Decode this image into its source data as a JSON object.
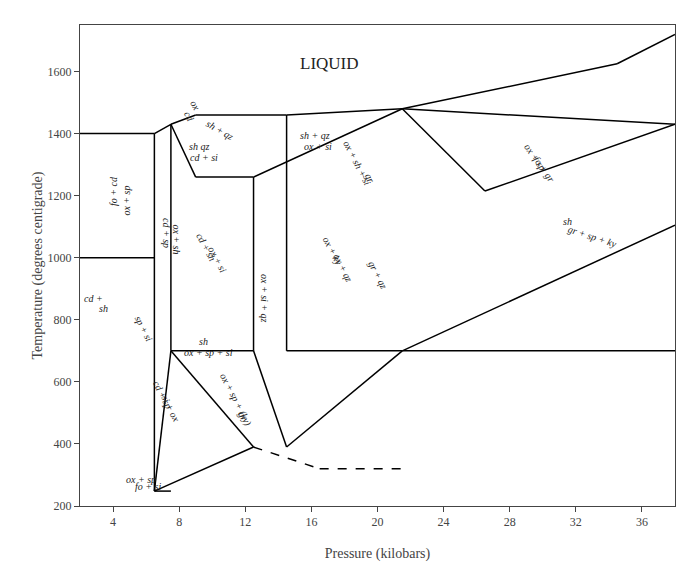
{
  "chart_data": {
    "type": "line",
    "title": "LIQUID",
    "xlabel": "Pressure (kilobars)",
    "ylabel": "Temperature (degrees centigrade)",
    "xlim": [
      2,
      38
    ],
    "ylim": [
      200,
      1750
    ],
    "xticks": [
      4,
      8,
      12,
      16,
      20,
      24,
      28,
      32,
      36
    ],
    "yticks": [
      200,
      400,
      600,
      800,
      1000,
      1200,
      1400,
      1600
    ],
    "grid": false,
    "color": "black",
    "series": [
      {
        "x": [
          2.0,
          6.5
        ],
        "values": [
          1400,
          1400
        ],
        "line_style": "solid"
      },
      {
        "x": [
          6.5,
          7.5
        ],
        "values": [
          1400,
          1430
        ],
        "line_style": "solid"
      },
      {
        "x": [
          7.5,
          9.0
        ],
        "values": [
          1430,
          1460
        ],
        "line_style": "solid"
      },
      {
        "x": [
          9.0,
          14.5
        ],
        "values": [
          1460,
          1460
        ],
        "line_style": "solid"
      },
      {
        "x": [
          14.5,
          21.5
        ],
        "values": [
          1460,
          1480
        ],
        "line_style": "solid"
      },
      {
        "x": [
          21.5,
          34.5
        ],
        "values": [
          1480,
          1625
        ],
        "line_style": "solid"
      },
      {
        "x": [
          34.5,
          38.0
        ],
        "values": [
          1625,
          1720
        ],
        "line_style": "solid"
      },
      {
        "x": [
          21.5,
          38.0
        ],
        "values": [
          1480,
          1430
        ],
        "line_style": "solid"
      },
      {
        "x": [
          6.5,
          6.5
        ],
        "values": [
          1400,
          248
        ],
        "line_style": "solid"
      },
      {
        "x": [
          7.5,
          7.5
        ],
        "values": [
          1430,
          700
        ],
        "line_style": "solid"
      },
      {
        "x": [
          6.5,
          7.5
        ],
        "values": [
          248,
          248
        ],
        "line_style": "solid"
      },
      {
        "x": [
          2.0,
          6.5
        ],
        "values": [
          1000,
          1000
        ],
        "line_style": "solid"
      },
      {
        "x": [
          6.5,
          7.5
        ],
        "values": [
          248,
          700
        ],
        "line_style": "solid"
      },
      {
        "x": [
          7.5,
          12.5
        ],
        "values": [
          700,
          700
        ],
        "line_style": "solid"
      },
      {
        "x": [
          7.5,
          9.0
        ],
        "values": [
          1430,
          1260
        ],
        "line_style": "solid"
      },
      {
        "x": [
          9.0,
          12.5
        ],
        "values": [
          1260,
          1260
        ],
        "line_style": "solid"
      },
      {
        "x": [
          12.5,
          12.5
        ],
        "values": [
          1260,
          700
        ],
        "line_style": "solid"
      },
      {
        "x": [
          12.5,
          21.5
        ],
        "values": [
          1260,
          1480
        ],
        "line_style": "solid"
      },
      {
        "x": [
          12.5,
          14.5
        ],
        "values": [
          700,
          390
        ],
        "line_style": "solid"
      },
      {
        "x": [
          14.5,
          14.5
        ],
        "values": [
          700,
          1460
        ],
        "line_style": "solid"
      },
      {
        "x": [
          7.5,
          12.5
        ],
        "values": [
          700,
          390
        ],
        "line_style": "solid"
      },
      {
        "x": [
          6.5,
          12.5
        ],
        "values": [
          248,
          390
        ],
        "line_style": "solid"
      },
      {
        "x": [
          14.5,
          21.5
        ],
        "values": [
          700,
          700
        ],
        "line_style": "solid"
      },
      {
        "x": [
          14.5,
          21.5
        ],
        "values": [
          390,
          700
        ],
        "line_style": "solid"
      },
      {
        "x": [
          21.5,
          38.0
        ],
        "values": [
          700,
          1105
        ],
        "line_style": "solid"
      },
      {
        "x": [
          21.5,
          38.0
        ],
        "values": [
          700,
          700
        ],
        "line_style": "solid"
      },
      {
        "x": [
          21.5,
          26.5
        ],
        "values": [
          1480,
          1215
        ],
        "line_style": "solid"
      },
      {
        "x": [
          26.5,
          38.0
        ],
        "values": [
          1215,
          1430
        ],
        "line_style": "solid"
      },
      {
        "x": [
          12.5,
          16.5
        ],
        "values": [
          390,
          320
        ],
        "line_style": "dashed"
      },
      {
        "x": [
          16.5,
          21.5
        ],
        "values": [
          320,
          320
        ],
        "line_style": "dashed"
      }
    ],
    "annotations": [
      {
        "text": "fo + cd",
        "x": 4.0,
        "y": 1215
      },
      {
        "text": "ox + sp",
        "x": 4.8,
        "y": 1185
      },
      {
        "text": "cd +",
        "x": 2.8,
        "y": 870
      },
      {
        "text": "sh",
        "x": 3.4,
        "y": 838
      },
      {
        "text": "sp + si",
        "x": 5.9,
        "y": 770
      },
      {
        "text": "cd + sp",
        "x": 7.2,
        "y": 1080
      },
      {
        "text": "ox + sh",
        "x": 7.85,
        "y": 1060
      },
      {
        "text": "cd + sh",
        "x": 9.6,
        "y": 1035
      },
      {
        "text": "ox + si",
        "x": 10.3,
        "y": 993
      },
      {
        "text": "ox + si + qz",
        "x": 13.2,
        "y": 870
      },
      {
        "text": "sh",
        "x": 9.5,
        "y": 730
      },
      {
        "text": "ox + sp + si",
        "x": 9.8,
        "y": 695
      },
      {
        "text": "cd + sp",
        "x": 7.0,
        "y": 560
      },
      {
        "text": "si + ox",
        "x": 7.5,
        "y": 515
      },
      {
        "text": "ox + sp + (ky)",
        "x": 11.4,
        "y": 540
      },
      {
        "text": "gr",
        "x": 11.9,
        "y": 490
      },
      {
        "text": "ox + sp",
        "x": 5.7,
        "y": 285
      },
      {
        "text": "fo + si",
        "x": 6.1,
        "y": 263
      },
      {
        "text": "ox",
        "x": 9.0,
        "y": 1492
      },
      {
        "text": "cd",
        "x": 8.6,
        "y": 1455
      },
      {
        "text": "sh + qz",
        "x": 10.5,
        "y": 1410
      },
      {
        "text": "sh qz",
        "x": 9.2,
        "y": 1360
      },
      {
        "text": "cd + si",
        "x": 9.5,
        "y": 1323
      },
      {
        "text": "sh + qz",
        "x": 16.2,
        "y": 1395
      },
      {
        "text": "ox + si",
        "x": 16.4,
        "y": 1358
      },
      {
        "text": "ox + sh + si",
        "x": 18.8,
        "y": 1305
      },
      {
        "text": "gr",
        "x": 19.5,
        "y": 1257
      },
      {
        "text": "ox + ky",
        "x": 17.3,
        "y": 1020
      },
      {
        "text": "ox + qz",
        "x": 17.9,
        "y": 968
      },
      {
        "text": "gr + qz",
        "x": 20.0,
        "y": 945
      },
      {
        "text": "ox + sp",
        "x": 29.5,
        "y": 1325
      },
      {
        "text": "fo + gr",
        "x": 30.1,
        "y": 1285
      },
      {
        "text": "sh",
        "x": 31.5,
        "y": 1118
      },
      {
        "text": "gr + sp + ky",
        "x": 33.0,
        "y": 1068
      }
    ]
  }
}
